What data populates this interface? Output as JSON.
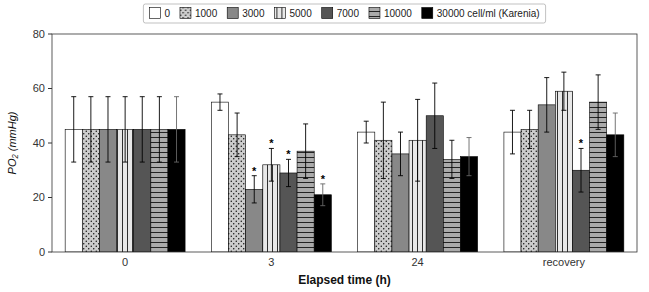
{
  "chart_data": {
    "type": "bar",
    "xlabel": "Elapsed time (h)",
    "ylabel": "PO₂ (mmHg)",
    "categories": [
      "0",
      "3",
      "24",
      "recovery"
    ],
    "ylim": [
      0,
      80
    ],
    "yticks": [
      0,
      20,
      40,
      60,
      80
    ],
    "grid": false,
    "legend": "top",
    "significance_label": "*",
    "series": [
      {
        "name": "0",
        "color": "white",
        "values": [
          45,
          55,
          44,
          44
        ],
        "errors": [
          12,
          3,
          4,
          8
        ],
        "significant": [
          false,
          false,
          false,
          false
        ]
      },
      {
        "name": "1000",
        "color": "#cccccc",
        "values": [
          45,
          43,
          41,
          45
        ],
        "errors": [
          12,
          8,
          14,
          7
        ],
        "significant": [
          false,
          false,
          false,
          false
        ]
      },
      {
        "name": "3000",
        "color": "#888888",
        "values": [
          45,
          23,
          36,
          54
        ],
        "errors": [
          12,
          5,
          8,
          10
        ],
        "significant": [
          false,
          true,
          false,
          false
        ]
      },
      {
        "name": "5000",
        "color": "#e8e8e8",
        "values": [
          45,
          32,
          41,
          59
        ],
        "errors": [
          12,
          6,
          15,
          7
        ],
        "significant": [
          false,
          true,
          false,
          false
        ]
      },
      {
        "name": "7000",
        "color": "#555555",
        "values": [
          45,
          29,
          50,
          30
        ],
        "errors": [
          12,
          5,
          12,
          8
        ],
        "significant": [
          false,
          true,
          false,
          true
        ]
      },
      {
        "name": "10000",
        "color": "#aaaaaa",
        "values": [
          45,
          37,
          34,
          55
        ],
        "errors": [
          12,
          10,
          7,
          10
        ],
        "significant": [
          false,
          false,
          false,
          false
        ]
      },
      {
        "name": "30000 cell/ml (Karenia)",
        "color": "black",
        "values": [
          45,
          21,
          35,
          43
        ],
        "errors": [
          12,
          4,
          7,
          8
        ],
        "significant": [
          false,
          true,
          false,
          false
        ]
      }
    ]
  }
}
